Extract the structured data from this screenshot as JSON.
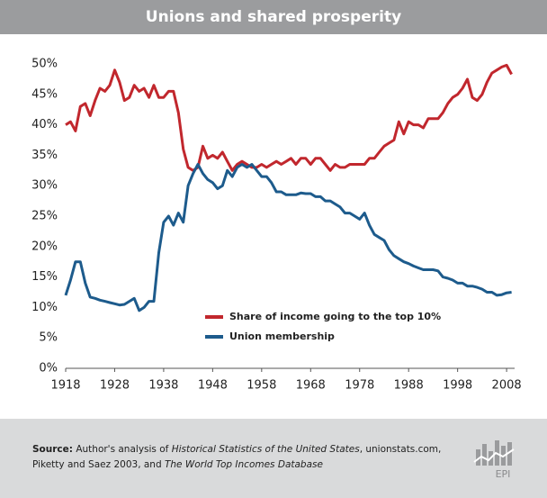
{
  "chart_data": {
    "type": "line",
    "title": "Unions and shared prosperity",
    "x": [
      1918,
      1919,
      1920,
      1921,
      1922,
      1923,
      1924,
      1925,
      1926,
      1927,
      1928,
      1929,
      1930,
      1931,
      1932,
      1933,
      1934,
      1935,
      1936,
      1937,
      1938,
      1939,
      1940,
      1941,
      1942,
      1943,
      1944,
      1945,
      1946,
      1947,
      1948,
      1949,
      1950,
      1951,
      1952,
      1953,
      1954,
      1955,
      1956,
      1957,
      1958,
      1959,
      1960,
      1961,
      1962,
      1963,
      1964,
      1965,
      1966,
      1967,
      1968,
      1969,
      1970,
      1971,
      1972,
      1973,
      1974,
      1975,
      1976,
      1977,
      1978,
      1979,
      1980,
      1981,
      1982,
      1983,
      1984,
      1985,
      1986,
      1987,
      1988,
      1989,
      1990,
      1991,
      1992,
      1993,
      1994,
      1995,
      1996,
      1997,
      1998,
      1999,
      2000,
      2001,
      2002,
      2003,
      2004,
      2005,
      2006,
      2007,
      2008,
      2009
    ],
    "series": [
      {
        "name": "Share of income going to the top 10%",
        "color": "#c1272d",
        "values": [
          40,
          40.5,
          39,
          43,
          43.5,
          41.5,
          44,
          46,
          45.5,
          46.5,
          49,
          47,
          44,
          44.5,
          46.5,
          45.5,
          46,
          44.5,
          46.5,
          44.5,
          44.5,
          45.5,
          45.5,
          42,
          36,
          33,
          32.5,
          33,
          36.5,
          34.5,
          35,
          34.5,
          35.5,
          34,
          32.5,
          33.5,
          34,
          33.5,
          33,
          33,
          33.5,
          33,
          33.5,
          34,
          33.5,
          34,
          34.5,
          33.5,
          34.5,
          34.5,
          33.5,
          34.5,
          34.5,
          33.5,
          32.5,
          33.5,
          33,
          33,
          33.5,
          33.5,
          33.5,
          33.5,
          34.5,
          34.5,
          35.5,
          36.5,
          37,
          37.5,
          40.5,
          38.5,
          40.5,
          40,
          40,
          39.5,
          41,
          41,
          41,
          42,
          43.5,
          44.5,
          45,
          46,
          47.5,
          44.5,
          44,
          45,
          47,
          48.5,
          49,
          49.5,
          49.8,
          48.3
        ]
      },
      {
        "name": "Union membership",
        "color": "#1d5b8c",
        "values": [
          12,
          14.5,
          17.5,
          17.5,
          14,
          11.7,
          11.5,
          11.2,
          11,
          10.8,
          10.6,
          10.4,
          10.5,
          11,
          11.5,
          9.5,
          10,
          11,
          11,
          19,
          24,
          25,
          23.5,
          25.5,
          24,
          30,
          32,
          33.5,
          32,
          31,
          30.5,
          29.5,
          30,
          32.5,
          31.5,
          33,
          33.5,
          33,
          33.5,
          32.5,
          31.5,
          31.5,
          30.5,
          29,
          29,
          28.5,
          28.5,
          28.5,
          28.8,
          28.7,
          28.7,
          28.2,
          28.2,
          27.5,
          27.5,
          27,
          26.5,
          25.5,
          25.5,
          25,
          24.5,
          25.5,
          23.5,
          22,
          21.5,
          21,
          19.5,
          18.5,
          18,
          17.5,
          17.2,
          16.8,
          16.5,
          16.2,
          16.2,
          16.2,
          16,
          15,
          14.8,
          14.5,
          14,
          14,
          13.5,
          13.5,
          13.3,
          13,
          12.5,
          12.5,
          12,
          12.1,
          12.4,
          12.5
        ]
      }
    ],
    "xlim": [
      1918,
      2010
    ],
    "xticks": [
      1918,
      1928,
      1938,
      1948,
      1958,
      1968,
      1978,
      1988,
      1998,
      2008
    ],
    "ylim": [
      0,
      50
    ],
    "yticks": [
      {
        "value": 0,
        "label": "0%"
      },
      {
        "value": 5,
        "label": "5%"
      },
      {
        "value": 10,
        "label": "10%"
      },
      {
        "value": 15,
        "label": "15%"
      },
      {
        "value": 20,
        "label": "20%"
      },
      {
        "value": 25,
        "label": "25%"
      },
      {
        "value": 30,
        "label": "30%"
      },
      {
        "value": 35,
        "label": "35%"
      },
      {
        "value": 40,
        "label": "40%"
      },
      {
        "value": 45,
        "label": "45%"
      },
      {
        "value": 50,
        "label": "50%"
      }
    ],
    "grid": false,
    "legend": "center"
  },
  "footer": {
    "label": "Source:",
    "parts": [
      "Author's analysis of ",
      "Historical Statistics of the United States",
      ", unionstats.com, Piketty and Saez 2003, and ",
      "The World Top Incomes Database"
    ],
    "logo": "EPI"
  }
}
